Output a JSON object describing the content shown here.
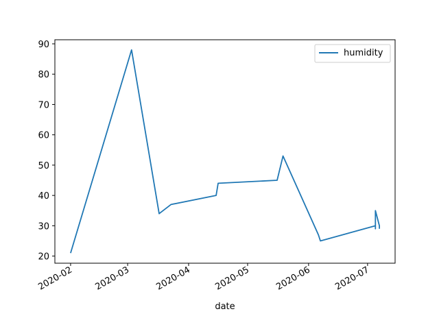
{
  "chart_data": {
    "type": "line",
    "title": "",
    "xlabel": "date",
    "ylabel": "",
    "x_ticks": [
      "2020-02",
      "2020-03",
      "2020-04",
      "2020-05",
      "2020-06",
      "2020-07"
    ],
    "y_ticks": [
      20,
      30,
      40,
      50,
      60,
      70,
      80,
      90
    ],
    "xlim": [
      "2020-01-24",
      "2020-07-15"
    ],
    "ylim": [
      17.65,
      91.35
    ],
    "grid": false,
    "legend": {
      "placement": "top-right",
      "entries": [
        "humidity"
      ]
    },
    "series": [
      {
        "name": "humidity",
        "color": "#1f77b4",
        "points": [
          {
            "x": "2020-02-01",
            "y": 21
          },
          {
            "x": "2020-03-03",
            "y": 88
          },
          {
            "x": "2020-03-17",
            "y": 34
          },
          {
            "x": "2020-03-23",
            "y": 37
          },
          {
            "x": "2020-04-15",
            "y": 40
          },
          {
            "x": "2020-04-16",
            "y": 44
          },
          {
            "x": "2020-05-16",
            "y": 45
          },
          {
            "x": "2020-05-19",
            "y": 53
          },
          {
            "x": "2020-06-06",
            "y": 27
          },
          {
            "x": "2020-06-07",
            "y": 25
          },
          {
            "x": "2020-07-05",
            "y": 30
          },
          {
            "x": "2020-07-05",
            "y": 29
          },
          {
            "x": "2020-07-05",
            "y": 35
          },
          {
            "x": "2020-07-07",
            "y": 30
          },
          {
            "x": "2020-07-07",
            "y": 29
          }
        ]
      }
    ]
  }
}
